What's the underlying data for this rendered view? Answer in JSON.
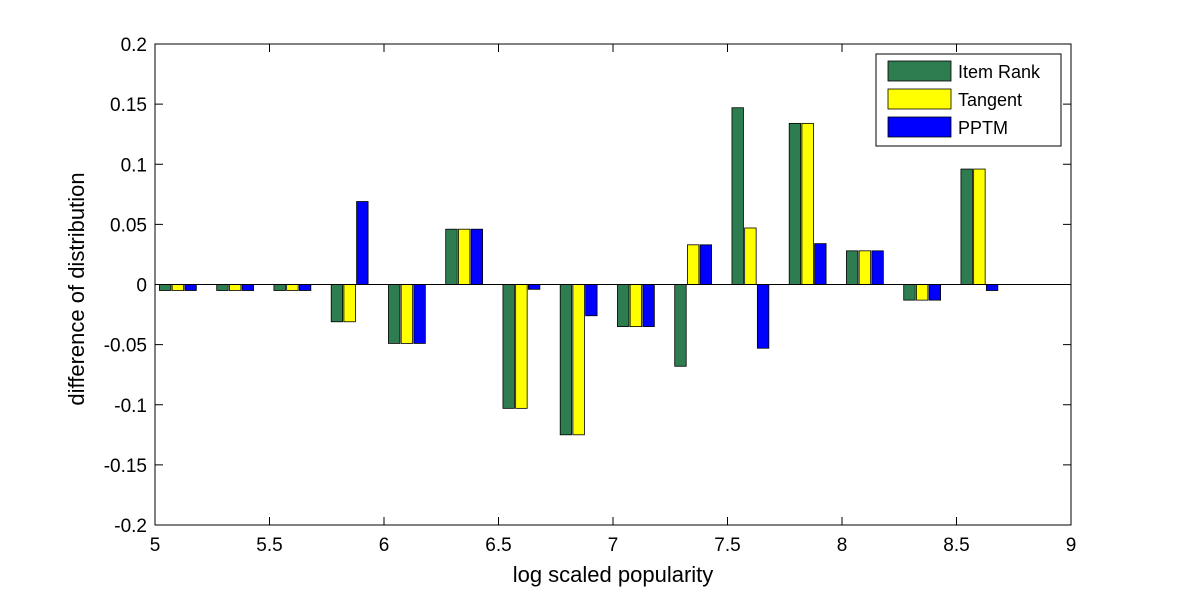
{
  "chart_data": {
    "type": "bar",
    "xlabel": "log scaled popularity",
    "ylabel": "difference of distribution",
    "xlim": [
      5,
      9
    ],
    "ylim": [
      -0.2,
      0.2
    ],
    "xticks": [
      "5",
      "5.5",
      "6",
      "6.5",
      "7",
      "7.5",
      "8",
      "8.5",
      "9"
    ],
    "yticks": [
      "0.2",
      "0.15",
      "0.1",
      "0.05",
      "0",
      "-0.05",
      "-0.1",
      "-0.15",
      "-0.2"
    ],
    "grid": false,
    "legend_position": "top-right",
    "x": [
      5.1,
      5.35,
      5.6,
      5.85,
      6.1,
      6.35,
      6.6,
      6.85,
      7.1,
      7.35,
      7.6,
      7.85,
      8.1,
      8.35,
      8.6
    ],
    "series": [
      {
        "name": "Item Rank",
        "color": "#2e7d50",
        "values": [
          -0.005,
          -0.005,
          -0.005,
          -0.031,
          -0.049,
          0.046,
          -0.103,
          -0.125,
          -0.035,
          -0.068,
          0.147,
          0.134,
          0.028,
          -0.013,
          0.096
        ]
      },
      {
        "name": "Tangent",
        "color": "#ffff00",
        "values": [
          -0.005,
          -0.005,
          -0.005,
          -0.031,
          -0.049,
          0.046,
          -0.103,
          -0.125,
          -0.035,
          0.033,
          0.047,
          0.134,
          0.028,
          -0.013,
          0.096
        ]
      },
      {
        "name": "PPTM",
        "color": "#0000ff",
        "values": [
          -0.005,
          -0.005,
          -0.005,
          0.069,
          -0.049,
          0.046,
          -0.004,
          -0.026,
          -0.035,
          0.033,
          -0.053,
          0.034,
          0.028,
          -0.013,
          -0.005
        ]
      }
    ]
  }
}
